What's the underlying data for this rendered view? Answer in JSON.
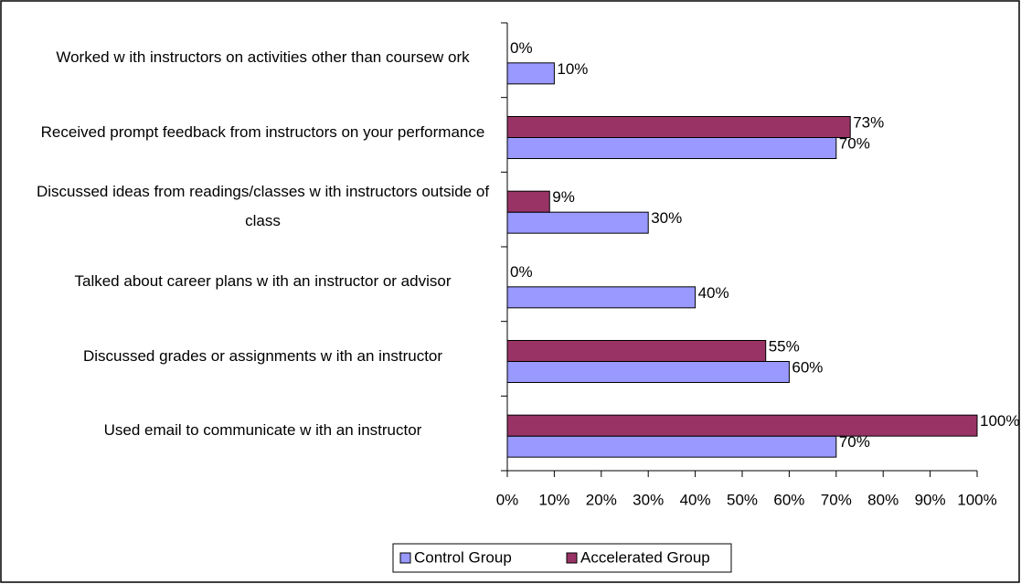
{
  "chart_data": {
    "type": "bar",
    "orientation": "horizontal",
    "categories": [
      "Worked w ith instructors on activities other than coursew ork",
      "Received prompt feedback from instructors on your performance",
      "Discussed ideas from readings/classes w ith instructors outside of class",
      "Talked about career plans w ith an instructor or advisor",
      "Discussed grades or assignments w ith an instructor",
      "Used email to communicate w ith an instructor"
    ],
    "series": [
      {
        "name": "Control Group",
        "color": "#9999ff",
        "values": [
          10,
          70,
          30,
          40,
          60,
          70
        ],
        "value_labels": [
          "10%",
          "70%",
          "30%",
          "40%",
          "60%",
          "70%"
        ]
      },
      {
        "name": "Accelerated Group",
        "color": "#993366",
        "values": [
          0,
          73,
          9,
          0,
          55,
          100
        ],
        "value_labels": [
          "0%",
          "73%",
          "9%",
          "0%",
          "55%",
          "100%"
        ]
      }
    ],
    "xlim": [
      0,
      100
    ],
    "xticks": [
      {
        "value": 0,
        "label": "0%"
      },
      {
        "value": 10,
        "label": "10%"
      },
      {
        "value": 20,
        "label": "20%"
      },
      {
        "value": 30,
        "label": "30%"
      },
      {
        "value": 40,
        "label": "40%"
      },
      {
        "value": 50,
        "label": "50%"
      },
      {
        "value": 60,
        "label": "60%"
      },
      {
        "value": 70,
        "label": "70%"
      },
      {
        "value": 80,
        "label": "80%"
      },
      {
        "value": 90,
        "label": "90%"
      },
      {
        "value": 100,
        "label": "100%"
      }
    ],
    "grid": false,
    "legend": "bottom"
  }
}
